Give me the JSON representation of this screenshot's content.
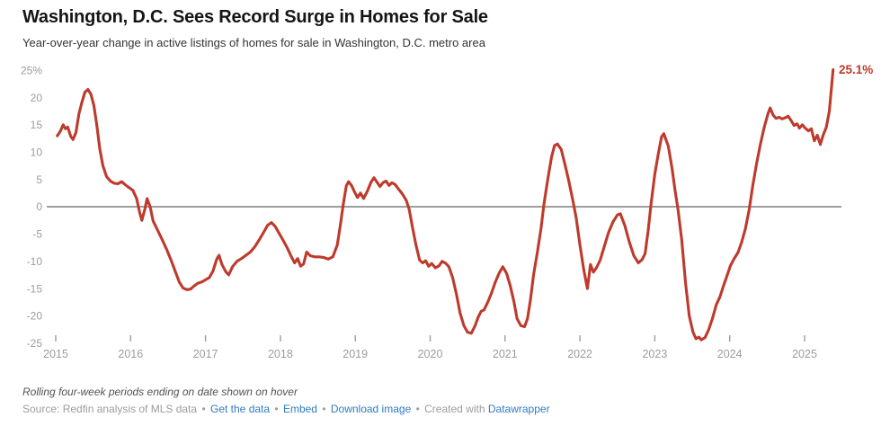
{
  "header": {
    "title": "Washington, D.C. Sees Record Surge in Homes for Sale",
    "subtitle": "Year-over-year change in active listings of homes for sale in Washington, D.C. metro area"
  },
  "chart_data": {
    "type": "line",
    "title": "Washington, D.C. Sees Record Surge in Homes for Sale",
    "series_name": "Year-over-year change in active listings (%)",
    "xlabel": "",
    "ylabel": "",
    "xlim": [
      2014.88,
      2025.9
    ],
    "ylim": [
      -26.5,
      27
    ],
    "grid": "zero-baseline-only",
    "legend": "none",
    "line_color": "#be3a2c",
    "axis_label_color": "#9c9c9c",
    "zero_line_color": "#9e9e9e",
    "x_ticks": [
      2015,
      2016,
      2017,
      2018,
      2019,
      2020,
      2021,
      2022,
      2023,
      2024,
      2025
    ],
    "x_tick_labels": [
      "2015",
      "2016",
      "2017",
      "2018",
      "2019",
      "2020",
      "2021",
      "2022",
      "2023",
      "2024",
      "2025"
    ],
    "y_ticks": [
      25,
      20,
      15,
      10,
      5,
      0,
      -5,
      -10,
      -15,
      -20,
      -25
    ],
    "y_tick_labels": [
      "25%",
      "20",
      "15",
      "10",
      "5",
      "0",
      "-5",
      "-10",
      "-15",
      "-20",
      "-25"
    ],
    "end_label": "25.1%",
    "end_value": 25.1,
    "points": [
      [
        2015.02,
        13.0
      ],
      [
        2015.06,
        13.8
      ],
      [
        2015.1,
        15.0
      ],
      [
        2015.13,
        14.3
      ],
      [
        2015.16,
        14.6
      ],
      [
        2015.2,
        12.9
      ],
      [
        2015.23,
        12.3
      ],
      [
        2015.27,
        13.6
      ],
      [
        2015.31,
        17.0
      ],
      [
        2015.35,
        19.2
      ],
      [
        2015.39,
        21.0
      ],
      [
        2015.43,
        21.5
      ],
      [
        2015.47,
        20.6
      ],
      [
        2015.51,
        18.5
      ],
      [
        2015.55,
        14.8
      ],
      [
        2015.59,
        10.5
      ],
      [
        2015.63,
        7.5
      ],
      [
        2015.68,
        5.5
      ],
      [
        2015.73,
        4.7
      ],
      [
        2015.78,
        4.3
      ],
      [
        2015.83,
        4.2
      ],
      [
        2015.88,
        4.6
      ],
      [
        2015.93,
        4.0
      ],
      [
        2015.98,
        3.5
      ],
      [
        2016.03,
        3.0
      ],
      [
        2016.08,
        1.5
      ],
      [
        2016.12,
        -1.0
      ],
      [
        2016.15,
        -2.5
      ],
      [
        2016.19,
        -0.5
      ],
      [
        2016.22,
        1.5
      ],
      [
        2016.26,
        0.0
      ],
      [
        2016.3,
        -2.6
      ],
      [
        2016.36,
        -4.3
      ],
      [
        2016.42,
        -6.0
      ],
      [
        2016.48,
        -7.8
      ],
      [
        2016.54,
        -9.8
      ],
      [
        2016.6,
        -12.0
      ],
      [
        2016.65,
        -13.8
      ],
      [
        2016.7,
        -14.9
      ],
      [
        2016.75,
        -15.2
      ],
      [
        2016.8,
        -15.1
      ],
      [
        2016.85,
        -14.5
      ],
      [
        2016.9,
        -14.0
      ],
      [
        2016.95,
        -13.8
      ],
      [
        2017.0,
        -13.4
      ],
      [
        2017.05,
        -13.0
      ],
      [
        2017.1,
        -11.8
      ],
      [
        2017.15,
        -9.6
      ],
      [
        2017.18,
        -8.9
      ],
      [
        2017.22,
        -10.6
      ],
      [
        2017.27,
        -11.9
      ],
      [
        2017.31,
        -12.5
      ],
      [
        2017.36,
        -11.0
      ],
      [
        2017.42,
        -10.0
      ],
      [
        2017.48,
        -9.5
      ],
      [
        2017.54,
        -8.9
      ],
      [
        2017.6,
        -8.3
      ],
      [
        2017.66,
        -7.3
      ],
      [
        2017.72,
        -6.0
      ],
      [
        2017.78,
        -4.6
      ],
      [
        2017.83,
        -3.4
      ],
      [
        2017.88,
        -2.9
      ],
      [
        2017.93,
        -3.6
      ],
      [
        2017.98,
        -4.8
      ],
      [
        2018.03,
        -6.0
      ],
      [
        2018.09,
        -7.5
      ],
      [
        2018.14,
        -9.0
      ],
      [
        2018.19,
        -10.3
      ],
      [
        2018.23,
        -9.5
      ],
      [
        2018.27,
        -10.9
      ],
      [
        2018.31,
        -10.5
      ],
      [
        2018.35,
        -8.3
      ],
      [
        2018.4,
        -9.0
      ],
      [
        2018.46,
        -9.2
      ],
      [
        2018.52,
        -9.2
      ],
      [
        2018.58,
        -9.3
      ],
      [
        2018.64,
        -9.6
      ],
      [
        2018.7,
        -9.2
      ],
      [
        2018.76,
        -7.0
      ],
      [
        2018.8,
        -3.5
      ],
      [
        2018.84,
        0.5
      ],
      [
        2018.88,
        3.8
      ],
      [
        2018.91,
        4.6
      ],
      [
        2018.95,
        3.9
      ],
      [
        2018.99,
        2.7
      ],
      [
        2019.03,
        1.7
      ],
      [
        2019.07,
        2.5
      ],
      [
        2019.11,
        1.5
      ],
      [
        2019.16,
        2.8
      ],
      [
        2019.21,
        4.5
      ],
      [
        2019.25,
        5.3
      ],
      [
        2019.29,
        4.5
      ],
      [
        2019.33,
        3.7
      ],
      [
        2019.37,
        4.4
      ],
      [
        2019.41,
        4.7
      ],
      [
        2019.45,
        3.9
      ],
      [
        2019.49,
        4.4
      ],
      [
        2019.53,
        4.1
      ],
      [
        2019.58,
        3.2
      ],
      [
        2019.63,
        2.3
      ],
      [
        2019.68,
        1.2
      ],
      [
        2019.72,
        -0.5
      ],
      [
        2019.76,
        -3.5
      ],
      [
        2019.81,
        -7.0
      ],
      [
        2019.86,
        -9.8
      ],
      [
        2019.9,
        -10.3
      ],
      [
        2019.94,
        -9.9
      ],
      [
        2019.98,
        -10.9
      ],
      [
        2020.02,
        -10.4
      ],
      [
        2020.07,
        -11.2
      ],
      [
        2020.12,
        -10.8
      ],
      [
        2020.16,
        -10.0
      ],
      [
        2020.21,
        -10.4
      ],
      [
        2020.25,
        -11.0
      ],
      [
        2020.3,
        -13.0
      ],
      [
        2020.35,
        -16.0
      ],
      [
        2020.4,
        -19.5
      ],
      [
        2020.45,
        -21.8
      ],
      [
        2020.5,
        -23.0
      ],
      [
        2020.55,
        -23.2
      ],
      [
        2020.6,
        -21.8
      ],
      [
        2020.64,
        -20.3
      ],
      [
        2020.68,
        -19.2
      ],
      [
        2020.72,
        -18.9
      ],
      [
        2020.77,
        -17.5
      ],
      [
        2020.82,
        -15.8
      ],
      [
        2020.87,
        -13.8
      ],
      [
        2020.92,
        -12.2
      ],
      [
        2020.97,
        -11.0
      ],
      [
        2021.02,
        -12.2
      ],
      [
        2021.07,
        -14.5
      ],
      [
        2021.12,
        -17.5
      ],
      [
        2021.16,
        -20.5
      ],
      [
        2021.21,
        -21.8
      ],
      [
        2021.26,
        -22.0
      ],
      [
        2021.3,
        -20.5
      ],
      [
        2021.34,
        -17.0
      ],
      [
        2021.38,
        -12.5
      ],
      [
        2021.43,
        -8.5
      ],
      [
        2021.48,
        -4.0
      ],
      [
        2021.52,
        0.5
      ],
      [
        2021.57,
        5.0
      ],
      [
        2021.62,
        9.0
      ],
      [
        2021.66,
        11.2
      ],
      [
        2021.7,
        11.5
      ],
      [
        2021.75,
        10.5
      ],
      [
        2021.8,
        7.8
      ],
      [
        2021.85,
        4.8
      ],
      [
        2021.9,
        1.5
      ],
      [
        2021.95,
        -2.0
      ],
      [
        2022.0,
        -7.0
      ],
      [
        2022.05,
        -11.5
      ],
      [
        2022.1,
        -15.0
      ],
      [
        2022.14,
        -10.6
      ],
      [
        2022.18,
        -12.0
      ],
      [
        2022.22,
        -11.2
      ],
      [
        2022.27,
        -9.8
      ],
      [
        2022.32,
        -7.5
      ],
      [
        2022.38,
        -4.8
      ],
      [
        2022.44,
        -2.8
      ],
      [
        2022.5,
        -1.5
      ],
      [
        2022.54,
        -1.3
      ],
      [
        2022.6,
        -3.5
      ],
      [
        2022.66,
        -6.5
      ],
      [
        2022.72,
        -9.0
      ],
      [
        2022.78,
        -10.3
      ],
      [
        2022.83,
        -9.7
      ],
      [
        2022.87,
        -8.6
      ],
      [
        2022.91,
        -4.5
      ],
      [
        2022.95,
        0.5
      ],
      [
        2023.0,
        6.0
      ],
      [
        2023.05,
        10.0
      ],
      [
        2023.09,
        12.8
      ],
      [
        2023.12,
        13.4
      ],
      [
        2023.18,
        11.1
      ],
      [
        2023.23,
        7.0
      ],
      [
        2023.27,
        3.0
      ],
      [
        2023.31,
        -0.5
      ],
      [
        2023.36,
        -6.2
      ],
      [
        2023.41,
        -14.0
      ],
      [
        2023.46,
        -20.0
      ],
      [
        2023.51,
        -23.0
      ],
      [
        2023.55,
        -24.2
      ],
      [
        2023.59,
        -23.9
      ],
      [
        2023.62,
        -24.4
      ],
      [
        2023.67,
        -24.0
      ],
      [
        2023.72,
        -22.5
      ],
      [
        2023.77,
        -20.5
      ],
      [
        2023.82,
        -18.0
      ],
      [
        2023.87,
        -16.5
      ],
      [
        2023.91,
        -14.8
      ],
      [
        2023.96,
        -12.8
      ],
      [
        2024.01,
        -10.8
      ],
      [
        2024.06,
        -9.5
      ],
      [
        2024.11,
        -8.4
      ],
      [
        2024.16,
        -6.5
      ],
      [
        2024.21,
        -4.0
      ],
      [
        2024.26,
        -0.5
      ],
      [
        2024.31,
        4.0
      ],
      [
        2024.36,
        8.0
      ],
      [
        2024.41,
        11.5
      ],
      [
        2024.46,
        14.5
      ],
      [
        2024.51,
        17.0
      ],
      [
        2024.54,
        18.1
      ],
      [
        2024.58,
        16.8
      ],
      [
        2024.62,
        16.2
      ],
      [
        2024.66,
        16.4
      ],
      [
        2024.7,
        16.1
      ],
      [
        2024.74,
        16.3
      ],
      [
        2024.78,
        16.6
      ],
      [
        2024.82,
        15.8
      ],
      [
        2024.86,
        14.9
      ],
      [
        2024.9,
        15.2
      ],
      [
        2024.93,
        14.4
      ],
      [
        2024.97,
        15.0
      ],
      [
        2025.01,
        14.4
      ],
      [
        2025.05,
        13.9
      ],
      [
        2025.09,
        14.3
      ],
      [
        2025.13,
        12.1
      ],
      [
        2025.17,
        13.1
      ],
      [
        2025.21,
        11.4
      ],
      [
        2025.25,
        13.2
      ],
      [
        2025.29,
        14.6
      ],
      [
        2025.33,
        17.5
      ],
      [
        2025.36,
        22.0
      ],
      [
        2025.38,
        25.1
      ]
    ]
  },
  "footer": {
    "note": "Rolling four-week periods ending on date shown on hover",
    "source_text": "Source: Redfin analysis of MLS data",
    "separator": "•",
    "links": [
      {
        "label": "Get the data"
      },
      {
        "label": "Embed"
      },
      {
        "label": "Download image"
      }
    ],
    "created_with_text": "Created with",
    "created_with_link": "Datawrapper",
    "link_color": "#2e7cc4"
  }
}
